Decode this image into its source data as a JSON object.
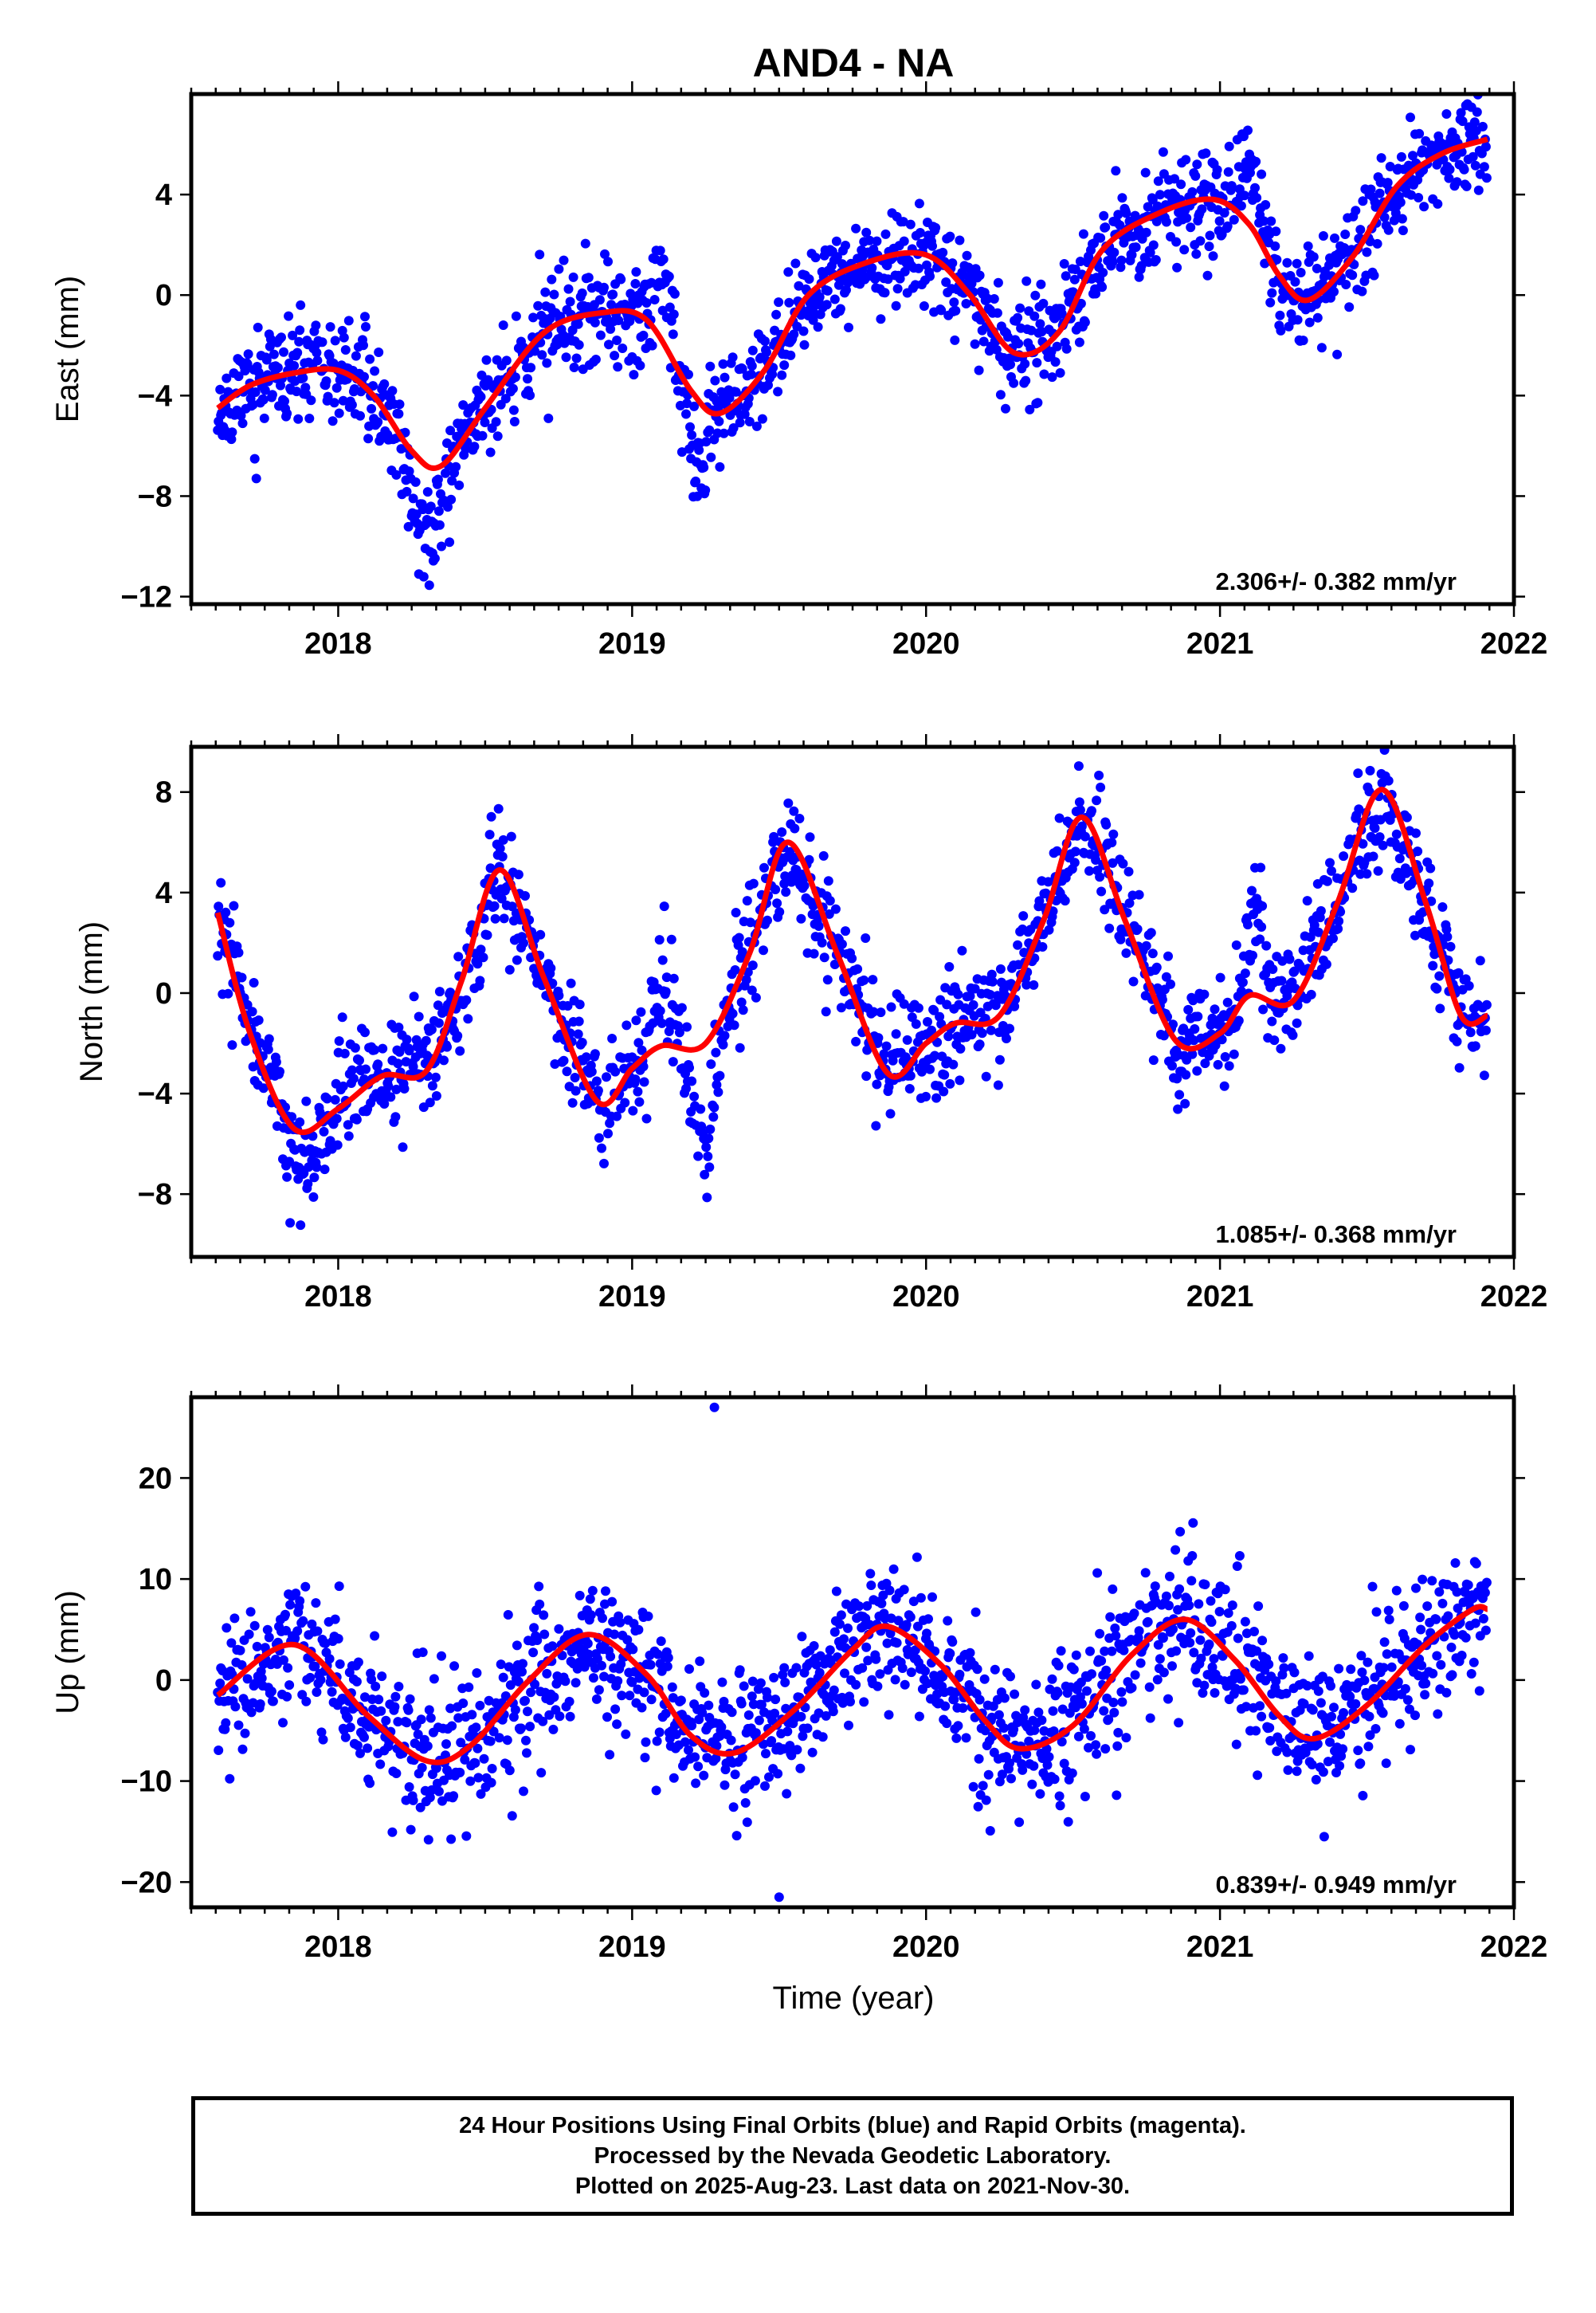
{
  "chart_data": {
    "type": "scatter",
    "title": "AND4 - NA",
    "xlabel": "Time (year)",
    "x_ticks": [
      2018,
      2019,
      2020,
      2021,
      2022
    ],
    "xlim": [
      2017.5,
      2022.0
    ],
    "data_span": [
      2017.59,
      2021.91
    ],
    "colors": {
      "points": "#0000ff",
      "fit": "#ff0000",
      "frame": "#000000"
    },
    "panels": [
      {
        "ylabel": "East (mm)",
        "ylim": [
          -12.3,
          8.0
        ],
        "yticks": [
          -12,
          -8,
          -4,
          0,
          4
        ],
        "rate_label": "2.306+/- 0.382 mm/yr",
        "fit": {
          "t": [
            2017.59,
            2017.7,
            2017.85,
            2018.0,
            2018.12,
            2018.25,
            2018.35,
            2018.5,
            2018.7,
            2018.9,
            2019.05,
            2019.2,
            2019.3,
            2019.45,
            2019.6,
            2019.8,
            2020.0,
            2020.15,
            2020.3,
            2020.45,
            2020.6,
            2020.8,
            2020.98,
            2021.1,
            2021.2,
            2021.3,
            2021.45,
            2021.6,
            2021.75,
            2021.91
          ],
          "v": [
            -4.5,
            -3.6,
            -3.1,
            -3.0,
            -4.0,
            -6.2,
            -6.8,
            -4.5,
            -1.5,
            -0.7,
            -1.0,
            -3.8,
            -4.7,
            -3.0,
            0.0,
            1.3,
            1.6,
            0.0,
            -2.3,
            -1.5,
            1.8,
            3.3,
            3.8,
            2.8,
            0.8,
            -0.2,
            1.5,
            4.3,
            5.6,
            6.2
          ]
        },
        "scatter": {
          "noise": 1.0,
          "seed": 11,
          "anomalies": [
            {
              "t": 2018.3,
              "w": 0.07,
              "a": -3.0
            },
            {
              "t": 2019.22,
              "w": 0.04,
              "a": -2.5
            },
            {
              "t": 2019.1,
              "w": 0.04,
              "a": 2.5
            },
            {
              "t": 2021.1,
              "w": 0.04,
              "a": 2.5
            }
          ]
        }
      },
      {
        "ylabel": "North (mm)",
        "ylim": [
          -10.5,
          9.8
        ],
        "yticks": [
          -8,
          -4,
          0,
          4,
          8
        ],
        "rate_label": "1.085+/- 0.368 mm/yr",
        "fit": {
          "t": [
            2017.59,
            2017.7,
            2017.85,
            2018.0,
            2018.15,
            2018.3,
            2018.42,
            2018.55,
            2018.7,
            2018.88,
            2019.0,
            2019.1,
            2019.25,
            2019.4,
            2019.53,
            2019.7,
            2019.87,
            2020.0,
            2020.1,
            2020.25,
            2020.4,
            2020.53,
            2020.68,
            2020.85,
            2021.0,
            2021.1,
            2021.25,
            2021.4,
            2021.55,
            2021.7,
            2021.82,
            2021.91
          ],
          "v": [
            3.2,
            -1.6,
            -5.4,
            -4.6,
            -3.3,
            -3.1,
            0.5,
            4.9,
            0.6,
            -4.3,
            -3.0,
            -2.1,
            -2.0,
            1.6,
            6.0,
            1.5,
            -3.2,
            -2.0,
            -1.2,
            -0.9,
            2.9,
            7.0,
            2.8,
            -1.9,
            -1.6,
            -0.1,
            -0.3,
            3.6,
            8.1,
            3.6,
            -0.9,
            -0.9
          ]
        },
        "scatter": {
          "noise": 1.1,
          "seed": 23,
          "anomalies": [
            {
              "t": 2017.88,
              "w": 0.08,
              "a": -1.5
            },
            {
              "t": 2019.25,
              "w": 0.05,
              "a": -4.5
            },
            {
              "t": 2019.1,
              "w": 0.04,
              "a": 3.0
            },
            {
              "t": 2021.12,
              "w": 0.04,
              "a": 3.5
            }
          ]
        }
      },
      {
        "ylabel": "Up (mm)",
        "ylim": [
          -22.5,
          28.0
        ],
        "yticks": [
          -20,
          -10,
          0,
          10,
          20
        ],
        "rate_label": "0.839+/- 0.949 mm/yr",
        "fit": {
          "t": [
            2017.59,
            2017.85,
            2018.1,
            2018.3,
            2018.45,
            2018.65,
            2018.85,
            2019.05,
            2019.2,
            2019.35,
            2019.55,
            2019.75,
            2019.87,
            2020.05,
            2020.2,
            2020.32,
            2020.5,
            2020.7,
            2020.88,
            2021.05,
            2021.2,
            2021.32,
            2021.5,
            2021.7,
            2021.86,
            2021.91
          ],
          "v": [
            -1.5,
            3.5,
            -3.5,
            -8.0,
            -6.5,
            0.0,
            4.5,
            0.5,
            -5.5,
            -7.2,
            -3.0,
            3.0,
            5.3,
            1.5,
            -4.0,
            -6.8,
            -4.5,
            2.5,
            6.0,
            2.0,
            -3.5,
            -5.8,
            -2.5,
            3.5,
            7.0,
            7.0
          ]
        },
        "scatter": {
          "noise": 3.6,
          "seed": 37,
          "anomalies": []
        },
        "outliers": [
          {
            "t": 2019.28,
            "v": 27.0
          },
          {
            "t": 2019.5,
            "v": -21.5
          }
        ]
      }
    ],
    "footer": [
      "24 Hour Positions Using Final Orbits (blue) and Rapid Orbits (magenta).",
      "Processed by the Nevada Geodetic Laboratory.",
      "Plotted on 2025-Aug-23. Last data on 2021-Nov-30."
    ]
  }
}
